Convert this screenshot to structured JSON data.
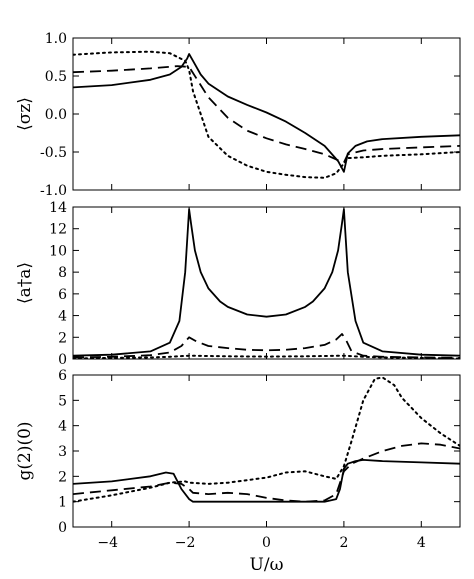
{
  "chart_data": [
    {
      "type": "line",
      "ylabel": "⟨σz⟩",
      "xlim": [
        -5,
        5
      ],
      "ylim": [
        -1.0,
        1.0
      ],
      "yticks": [
        "1.0",
        "0.5",
        "0.0",
        "-0.5",
        "-1.0"
      ],
      "grid": false,
      "series": [
        {
          "style": "solid",
          "x": [
            -5,
            -4,
            -3,
            -2.5,
            -2.2,
            -2.05,
            -2.0,
            -1.9,
            -1.7,
            -1.5,
            -1,
            -0.5,
            0,
            0.5,
            1,
            1.5,
            1.85,
            2.0,
            2.1,
            2.3,
            2.6,
            3,
            4,
            5
          ],
          "y": [
            0.35,
            0.38,
            0.45,
            0.52,
            0.62,
            0.73,
            0.79,
            0.7,
            0.52,
            0.4,
            0.23,
            0.12,
            0.02,
            -0.1,
            -0.25,
            -0.42,
            -0.62,
            -0.76,
            -0.52,
            -0.42,
            -0.36,
            -0.33,
            -0.3,
            -0.28
          ]
        },
        {
          "style": "dashed",
          "x": [
            -5,
            -4,
            -3,
            -2.3,
            -2.0,
            -1.8,
            -1.5,
            -1,
            -0.5,
            0,
            0.5,
            1,
            1.5,
            1.9,
            2.0,
            2.1,
            2.5,
            3,
            4,
            5
          ],
          "y": [
            0.55,
            0.57,
            0.6,
            0.63,
            0.62,
            0.46,
            0.22,
            -0.05,
            -0.22,
            -0.32,
            -0.4,
            -0.46,
            -0.53,
            -0.62,
            -0.64,
            -0.53,
            -0.48,
            -0.46,
            -0.44,
            -0.42
          ]
        },
        {
          "style": "dotted",
          "x": [
            -5,
            -4,
            -3,
            -2.5,
            -2.1,
            -2.0,
            -1.9,
            -1.7,
            -1.5,
            -1,
            -0.5,
            0,
            0.5,
            1,
            1.5,
            1.8,
            2.0,
            2.1,
            2.5,
            3,
            4,
            5
          ],
          "y": [
            0.78,
            0.81,
            0.82,
            0.8,
            0.7,
            0.58,
            0.3,
            0.0,
            -0.3,
            -0.55,
            -0.68,
            -0.76,
            -0.8,
            -0.83,
            -0.84,
            -0.78,
            -0.65,
            -0.58,
            -0.57,
            -0.55,
            -0.53,
            -0.5
          ]
        }
      ]
    },
    {
      "type": "line",
      "ylabel": "⟨a†a⟩",
      "xlim": [
        -5,
        5
      ],
      "ylim": [
        0,
        14
      ],
      "yticks": [
        "14",
        "12",
        "10",
        "8",
        "6",
        "4",
        "2",
        "0"
      ],
      "grid": false,
      "series": [
        {
          "style": "solid",
          "x": [
            -5,
            -4,
            -3,
            -2.5,
            -2.25,
            -2.1,
            -2.0,
            -1.95,
            -1.85,
            -1.7,
            -1.5,
            -1.2,
            -1,
            -0.5,
            0,
            0.5,
            1,
            1.2,
            1.5,
            1.7,
            1.85,
            1.95,
            2.0,
            2.1,
            2.3,
            2.5,
            3,
            4,
            5
          ],
          "y": [
            0.3,
            0.4,
            0.7,
            1.5,
            3.5,
            8.0,
            13.8,
            12.5,
            10.0,
            8.0,
            6.5,
            5.3,
            4.8,
            4.1,
            3.9,
            4.1,
            4.8,
            5.3,
            6.5,
            8.0,
            10.0,
            12.5,
            13.8,
            8.0,
            3.5,
            1.5,
            0.7,
            0.4,
            0.3
          ]
        },
        {
          "style": "dashed",
          "x": [
            -5,
            -4,
            -3,
            -2.5,
            -2.2,
            -2.0,
            -1.8,
            -1.5,
            -1,
            -0.5,
            0,
            0.5,
            1,
            1.5,
            1.8,
            1.95,
            2.05,
            2.2,
            2.5,
            3,
            4,
            5
          ],
          "y": [
            0.15,
            0.2,
            0.35,
            0.6,
            1.2,
            2.0,
            1.6,
            1.2,
            1.0,
            0.85,
            0.8,
            0.85,
            1.0,
            1.3,
            1.8,
            2.3,
            1.8,
            0.7,
            0.3,
            0.2,
            0.15,
            0.1
          ]
        },
        {
          "style": "dotted",
          "x": [
            -5,
            -4,
            -3,
            -2.5,
            -2.0,
            -1.5,
            -1,
            0,
            1,
            1.5,
            2.0,
            2.5,
            3,
            4,
            5
          ],
          "y": [
            0.05,
            0.1,
            0.15,
            0.2,
            0.3,
            0.28,
            0.25,
            0.22,
            0.25,
            0.28,
            0.3,
            0.2,
            0.15,
            0.1,
            0.05
          ]
        }
      ]
    },
    {
      "type": "line",
      "ylabel": "g(2)(0)",
      "xlabel": "U/ω",
      "xlim": [
        -5,
        5
      ],
      "ylim": [
        0,
        6
      ],
      "xticks": [
        "−4",
        "−2",
        "0",
        "2",
        "4"
      ],
      "yticks": [
        "6",
        "5",
        "4",
        "3",
        "2",
        "1",
        "0"
      ],
      "grid": false,
      "series": [
        {
          "style": "solid",
          "x": [
            -5,
            -4,
            -3,
            -2.6,
            -2.4,
            -2.2,
            -2.0,
            -1.9,
            -1.5,
            0,
            1,
            1.5,
            1.8,
            1.9,
            2.0,
            2.1,
            2.3,
            2.5,
            3,
            4,
            5
          ],
          "y": [
            1.7,
            1.8,
            2.0,
            2.15,
            2.1,
            1.5,
            1.1,
            1.0,
            1.0,
            1.0,
            1.0,
            1.0,
            1.1,
            1.5,
            2.3,
            2.5,
            2.6,
            2.65,
            2.6,
            2.55,
            2.5
          ]
        },
        {
          "style": "dashed",
          "x": [
            -5,
            -4,
            -3,
            -2.5,
            -2.2,
            -2.0,
            -1.9,
            -1.5,
            -1,
            -0.5,
            0,
            0.5,
            1,
            1.5,
            1.8,
            2.0,
            2.2,
            2.5,
            3,
            3.5,
            4,
            4.5,
            5
          ],
          "y": [
            1.3,
            1.45,
            1.6,
            1.75,
            1.7,
            1.5,
            1.35,
            1.3,
            1.35,
            1.3,
            1.15,
            1.05,
            1.0,
            1.05,
            1.3,
            2.2,
            2.5,
            2.7,
            3.0,
            3.2,
            3.3,
            3.25,
            3.1
          ]
        },
        {
          "style": "dotted",
          "x": [
            -5,
            -4,
            -3,
            -2.5,
            -2.1,
            -2.0,
            -1.5,
            -1,
            0,
            0.5,
            1,
            1.5,
            1.8,
            2.0,
            2.2,
            2.5,
            2.8,
            3.0,
            3.3,
            3.5,
            4,
            4.5,
            5
          ],
          "y": [
            1.0,
            1.25,
            1.55,
            1.75,
            1.8,
            1.75,
            1.7,
            1.75,
            1.95,
            2.15,
            2.2,
            2.0,
            1.9,
            2.4,
            3.4,
            5.0,
            5.85,
            5.9,
            5.6,
            5.1,
            4.3,
            3.7,
            3.2
          ]
        }
      ]
    }
  ]
}
